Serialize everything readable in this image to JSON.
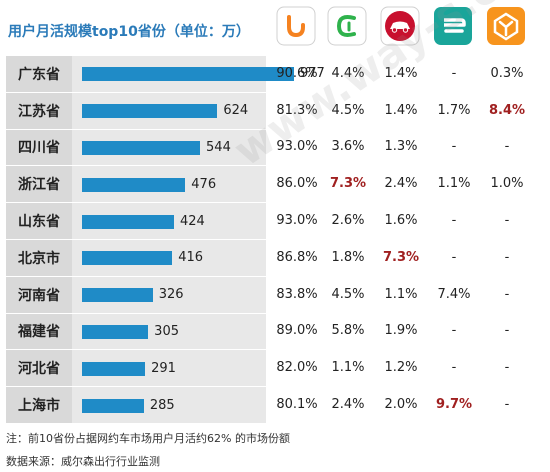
{
  "title": "用户月活规模top10省份（单位：万）",
  "note": "注：前10省份占据网约车市场用户月活约62% 的市场份额",
  "source": "数据来源：威尔森出行行业监测",
  "watermark": "www.way-s.cn",
  "logos": [
    {
      "icon": "didi-logo-icon",
      "bg": "#ffffff",
      "fg": "#f58220"
    },
    {
      "icon": "cao-cao-logo-icon",
      "bg": "#ffffff",
      "fg": "#2fb24c"
    },
    {
      "icon": "t3-car-logo-icon",
      "bg": "#ffffff",
      "fg": "#c8102e"
    },
    {
      "icon": "e-logo-icon",
      "bg": "#1aa59a",
      "fg": "#ffffff"
    },
    {
      "icon": "orange-logo-icon",
      "bg": "#f7941d",
      "fg": "#ffffff"
    }
  ],
  "chart_data": {
    "type": "bar",
    "orientation": "horizontal",
    "categories": [
      "广东省",
      "江苏省",
      "四川省",
      "浙江省",
      "山东省",
      "北京市",
      "河南省",
      "福建省",
      "河北省",
      "上海市"
    ],
    "values": [
      977,
      624,
      544,
      476,
      424,
      416,
      326,
      305,
      291,
      285
    ],
    "value_labels": [
      "977",
      "624",
      "544",
      "476",
      "424",
      "416",
      "326",
      "305",
      "291",
      "285"
    ],
    "share_table": [
      [
        "90.6%",
        "4.4%",
        "1.4%",
        "-",
        "0.3%"
      ],
      [
        "81.3%",
        "4.5%",
        "1.4%",
        "1.7%",
        "8.4%"
      ],
      [
        "93.0%",
        "3.6%",
        "1.3%",
        "-",
        "-"
      ],
      [
        "86.0%",
        "7.3%",
        "2.4%",
        "1.1%",
        "1.0%"
      ],
      [
        "93.0%",
        "2.6%",
        "1.6%",
        "-",
        "-"
      ],
      [
        "86.8%",
        "1.8%",
        "7.3%",
        "-",
        "-"
      ],
      [
        "83.8%",
        "4.5%",
        "1.1%",
        "7.4%",
        "-"
      ],
      [
        "89.0%",
        "5.8%",
        "1.9%",
        "-",
        "-"
      ],
      [
        "82.0%",
        "1.1%",
        "1.2%",
        "-",
        "-"
      ],
      [
        "80.1%",
        "2.4%",
        "2.0%",
        "9.7%",
        "-"
      ]
    ],
    "highlighted": [
      [
        1,
        4
      ],
      [
        3,
        1
      ],
      [
        5,
        2
      ],
      [
        9,
        3
      ]
    ],
    "highlight_color": "#a02020",
    "bar_color": "#1f8bc7",
    "xlim": [
      0,
      977
    ]
  }
}
